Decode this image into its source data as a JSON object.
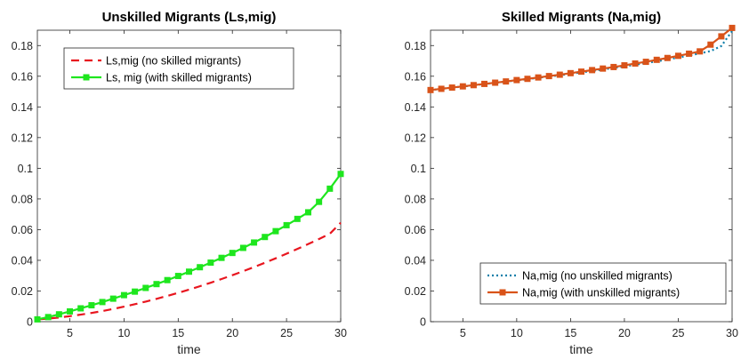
{
  "chart_data": [
    {
      "type": "line",
      "title": "Unskilled Migrants (Ls,mig)",
      "xlabel": "time",
      "ylabel": "",
      "xlim": [
        2,
        30
      ],
      "ylim": [
        0,
        0.19
      ],
      "xticks": [
        5,
        10,
        15,
        20,
        25,
        30
      ],
      "xtick_labels": [
        "5",
        "10",
        "15",
        "20",
        "25",
        "30"
      ],
      "yticks": [
        0,
        0.02,
        0.04,
        0.06,
        0.08,
        0.1,
        0.12,
        0.14,
        0.16,
        0.18
      ],
      "ytick_labels": [
        "0",
        "0.02",
        "0.04",
        "0.06",
        "0.08",
        "0.1",
        "0.12",
        "0.14",
        "0.16",
        "0.18"
      ],
      "grid": false,
      "legend_position": "top-left",
      "x": [
        2,
        3,
        4,
        5,
        6,
        7,
        8,
        9,
        10,
        11,
        12,
        13,
        14,
        15,
        16,
        17,
        18,
        19,
        20,
        21,
        22,
        23,
        24,
        25,
        26,
        27,
        28,
        29,
        30
      ],
      "series": [
        {
          "name": "Ls,mig (no skilled migrants)",
          "color": "#e8161f",
          "style": "dashed",
          "marker": "none",
          "values": [
            0.0015,
            0.002,
            0.0027,
            0.0036,
            0.0046,
            0.0057,
            0.0069,
            0.0083,
            0.0098,
            0.0114,
            0.0131,
            0.0149,
            0.0168,
            0.0188,
            0.0209,
            0.0231,
            0.0254,
            0.0278,
            0.0303,
            0.0329,
            0.0356,
            0.0384,
            0.0413,
            0.0443,
            0.0474,
            0.0506,
            0.0539,
            0.0573,
            0.0645
          ]
        },
        {
          "name": "Ls, mig (with skilled migrants)",
          "color": "#1ee61e",
          "style": "solid",
          "marker": "square",
          "values": [
            0.0015,
            0.003,
            0.0048,
            0.0067,
            0.0087,
            0.0107,
            0.0128,
            0.015,
            0.0173,
            0.0196,
            0.022,
            0.0245,
            0.0271,
            0.0298,
            0.0326,
            0.0355,
            0.0385,
            0.0416,
            0.0448,
            0.0481,
            0.0516,
            0.0552,
            0.059,
            0.0629,
            0.067,
            0.0713,
            0.0781,
            0.0867,
            0.0963
          ]
        }
      ]
    },
    {
      "type": "line",
      "title": "Skilled Migrants (Na,mig)",
      "xlabel": "time",
      "ylabel": "",
      "xlim": [
        2,
        30
      ],
      "ylim": [
        0,
        0.19
      ],
      "xticks": [
        5,
        10,
        15,
        20,
        25,
        30
      ],
      "xtick_labels": [
        "5",
        "10",
        "15",
        "20",
        "25",
        "30"
      ],
      "yticks": [
        0,
        0.02,
        0.04,
        0.06,
        0.08,
        0.1,
        0.12,
        0.14,
        0.16,
        0.18
      ],
      "ytick_labels": [
        "0",
        "0.02",
        "0.04",
        "0.06",
        "0.08",
        "0.1",
        "0.12",
        "0.14",
        "0.16",
        "0.18"
      ],
      "grid": false,
      "legend_position": "bottom-right",
      "x": [
        2,
        3,
        4,
        5,
        6,
        7,
        8,
        9,
        10,
        11,
        12,
        13,
        14,
        15,
        16,
        17,
        18,
        19,
        20,
        21,
        22,
        23,
        24,
        25,
        26,
        27,
        28,
        29,
        30
      ],
      "series": [
        {
          "name": "Na,mig (no unskilled migrants)",
          "color": "#0f7faa",
          "style": "dotted",
          "marker": "none",
          "values": [
            0.151,
            0.1518,
            0.1526,
            0.1533,
            0.1541,
            0.1549,
            0.1557,
            0.1565,
            0.1573,
            0.1581,
            0.159,
            0.1598,
            0.1607,
            0.1616,
            0.1625,
            0.1634,
            0.1644,
            0.1654,
            0.1664,
            0.1675,
            0.1686,
            0.1697,
            0.1709,
            0.1722,
            0.1735,
            0.1749,
            0.1764,
            0.1797,
            0.1895
          ]
        },
        {
          "name": "Na,mig (with unskilled migrants)",
          "color": "#d95319",
          "style": "solid",
          "marker": "square",
          "values": [
            0.151,
            0.1518,
            0.1526,
            0.1534,
            0.1542,
            0.155,
            0.1558,
            0.1566,
            0.1575,
            0.1583,
            0.1592,
            0.1601,
            0.161,
            0.162,
            0.163,
            0.164,
            0.165,
            0.166,
            0.1671,
            0.1683,
            0.1694,
            0.1707,
            0.1719,
            0.1733,
            0.1747,
            0.1762,
            0.1806,
            0.186,
            0.1915
          ]
        }
      ]
    }
  ]
}
